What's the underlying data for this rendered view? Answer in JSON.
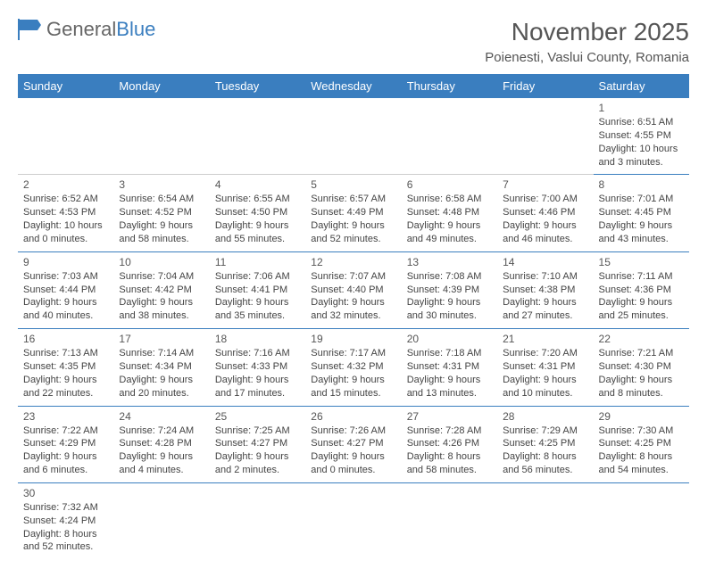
{
  "logo": {
    "text_general": "General",
    "text_blue": "Blue",
    "flag_color": "#3a7ebf"
  },
  "header": {
    "month_title": "November 2025",
    "location": "Poienesti, Vaslui County, Romania"
  },
  "styles": {
    "header_bg": "#3a7ebf",
    "header_fg": "#ffffff",
    "border_color": "#3a7ebf"
  },
  "day_names": [
    "Sunday",
    "Monday",
    "Tuesday",
    "Wednesday",
    "Thursday",
    "Friday",
    "Saturday"
  ],
  "weeks": [
    [
      null,
      null,
      null,
      null,
      null,
      null,
      {
        "n": "1",
        "sr": "Sunrise: 6:51 AM",
        "ss": "Sunset: 4:55 PM",
        "dl": "Daylight: 10 hours and 3 minutes."
      }
    ],
    [
      {
        "n": "2",
        "sr": "Sunrise: 6:52 AM",
        "ss": "Sunset: 4:53 PM",
        "dl": "Daylight: 10 hours and 0 minutes."
      },
      {
        "n": "3",
        "sr": "Sunrise: 6:54 AM",
        "ss": "Sunset: 4:52 PM",
        "dl": "Daylight: 9 hours and 58 minutes."
      },
      {
        "n": "4",
        "sr": "Sunrise: 6:55 AM",
        "ss": "Sunset: 4:50 PM",
        "dl": "Daylight: 9 hours and 55 minutes."
      },
      {
        "n": "5",
        "sr": "Sunrise: 6:57 AM",
        "ss": "Sunset: 4:49 PM",
        "dl": "Daylight: 9 hours and 52 minutes."
      },
      {
        "n": "6",
        "sr": "Sunrise: 6:58 AM",
        "ss": "Sunset: 4:48 PM",
        "dl": "Daylight: 9 hours and 49 minutes."
      },
      {
        "n": "7",
        "sr": "Sunrise: 7:00 AM",
        "ss": "Sunset: 4:46 PM",
        "dl": "Daylight: 9 hours and 46 minutes."
      },
      {
        "n": "8",
        "sr": "Sunrise: 7:01 AM",
        "ss": "Sunset: 4:45 PM",
        "dl": "Daylight: 9 hours and 43 minutes."
      }
    ],
    [
      {
        "n": "9",
        "sr": "Sunrise: 7:03 AM",
        "ss": "Sunset: 4:44 PM",
        "dl": "Daylight: 9 hours and 40 minutes."
      },
      {
        "n": "10",
        "sr": "Sunrise: 7:04 AM",
        "ss": "Sunset: 4:42 PM",
        "dl": "Daylight: 9 hours and 38 minutes."
      },
      {
        "n": "11",
        "sr": "Sunrise: 7:06 AM",
        "ss": "Sunset: 4:41 PM",
        "dl": "Daylight: 9 hours and 35 minutes."
      },
      {
        "n": "12",
        "sr": "Sunrise: 7:07 AM",
        "ss": "Sunset: 4:40 PM",
        "dl": "Daylight: 9 hours and 32 minutes."
      },
      {
        "n": "13",
        "sr": "Sunrise: 7:08 AM",
        "ss": "Sunset: 4:39 PM",
        "dl": "Daylight: 9 hours and 30 minutes."
      },
      {
        "n": "14",
        "sr": "Sunrise: 7:10 AM",
        "ss": "Sunset: 4:38 PM",
        "dl": "Daylight: 9 hours and 27 minutes."
      },
      {
        "n": "15",
        "sr": "Sunrise: 7:11 AM",
        "ss": "Sunset: 4:36 PM",
        "dl": "Daylight: 9 hours and 25 minutes."
      }
    ],
    [
      {
        "n": "16",
        "sr": "Sunrise: 7:13 AM",
        "ss": "Sunset: 4:35 PM",
        "dl": "Daylight: 9 hours and 22 minutes."
      },
      {
        "n": "17",
        "sr": "Sunrise: 7:14 AM",
        "ss": "Sunset: 4:34 PM",
        "dl": "Daylight: 9 hours and 20 minutes."
      },
      {
        "n": "18",
        "sr": "Sunrise: 7:16 AM",
        "ss": "Sunset: 4:33 PM",
        "dl": "Daylight: 9 hours and 17 minutes."
      },
      {
        "n": "19",
        "sr": "Sunrise: 7:17 AM",
        "ss": "Sunset: 4:32 PM",
        "dl": "Daylight: 9 hours and 15 minutes."
      },
      {
        "n": "20",
        "sr": "Sunrise: 7:18 AM",
        "ss": "Sunset: 4:31 PM",
        "dl": "Daylight: 9 hours and 13 minutes."
      },
      {
        "n": "21",
        "sr": "Sunrise: 7:20 AM",
        "ss": "Sunset: 4:31 PM",
        "dl": "Daylight: 9 hours and 10 minutes."
      },
      {
        "n": "22",
        "sr": "Sunrise: 7:21 AM",
        "ss": "Sunset: 4:30 PM",
        "dl": "Daylight: 9 hours and 8 minutes."
      }
    ],
    [
      {
        "n": "23",
        "sr": "Sunrise: 7:22 AM",
        "ss": "Sunset: 4:29 PM",
        "dl": "Daylight: 9 hours and 6 minutes."
      },
      {
        "n": "24",
        "sr": "Sunrise: 7:24 AM",
        "ss": "Sunset: 4:28 PM",
        "dl": "Daylight: 9 hours and 4 minutes."
      },
      {
        "n": "25",
        "sr": "Sunrise: 7:25 AM",
        "ss": "Sunset: 4:27 PM",
        "dl": "Daylight: 9 hours and 2 minutes."
      },
      {
        "n": "26",
        "sr": "Sunrise: 7:26 AM",
        "ss": "Sunset: 4:27 PM",
        "dl": "Daylight: 9 hours and 0 minutes."
      },
      {
        "n": "27",
        "sr": "Sunrise: 7:28 AM",
        "ss": "Sunset: 4:26 PM",
        "dl": "Daylight: 8 hours and 58 minutes."
      },
      {
        "n": "28",
        "sr": "Sunrise: 7:29 AM",
        "ss": "Sunset: 4:25 PM",
        "dl": "Daylight: 8 hours and 56 minutes."
      },
      {
        "n": "29",
        "sr": "Sunrise: 7:30 AM",
        "ss": "Sunset: 4:25 PM",
        "dl": "Daylight: 8 hours and 54 minutes."
      }
    ],
    [
      {
        "n": "30",
        "sr": "Sunrise: 7:32 AM",
        "ss": "Sunset: 4:24 PM",
        "dl": "Daylight: 8 hours and 52 minutes."
      },
      null,
      null,
      null,
      null,
      null,
      null
    ]
  ]
}
